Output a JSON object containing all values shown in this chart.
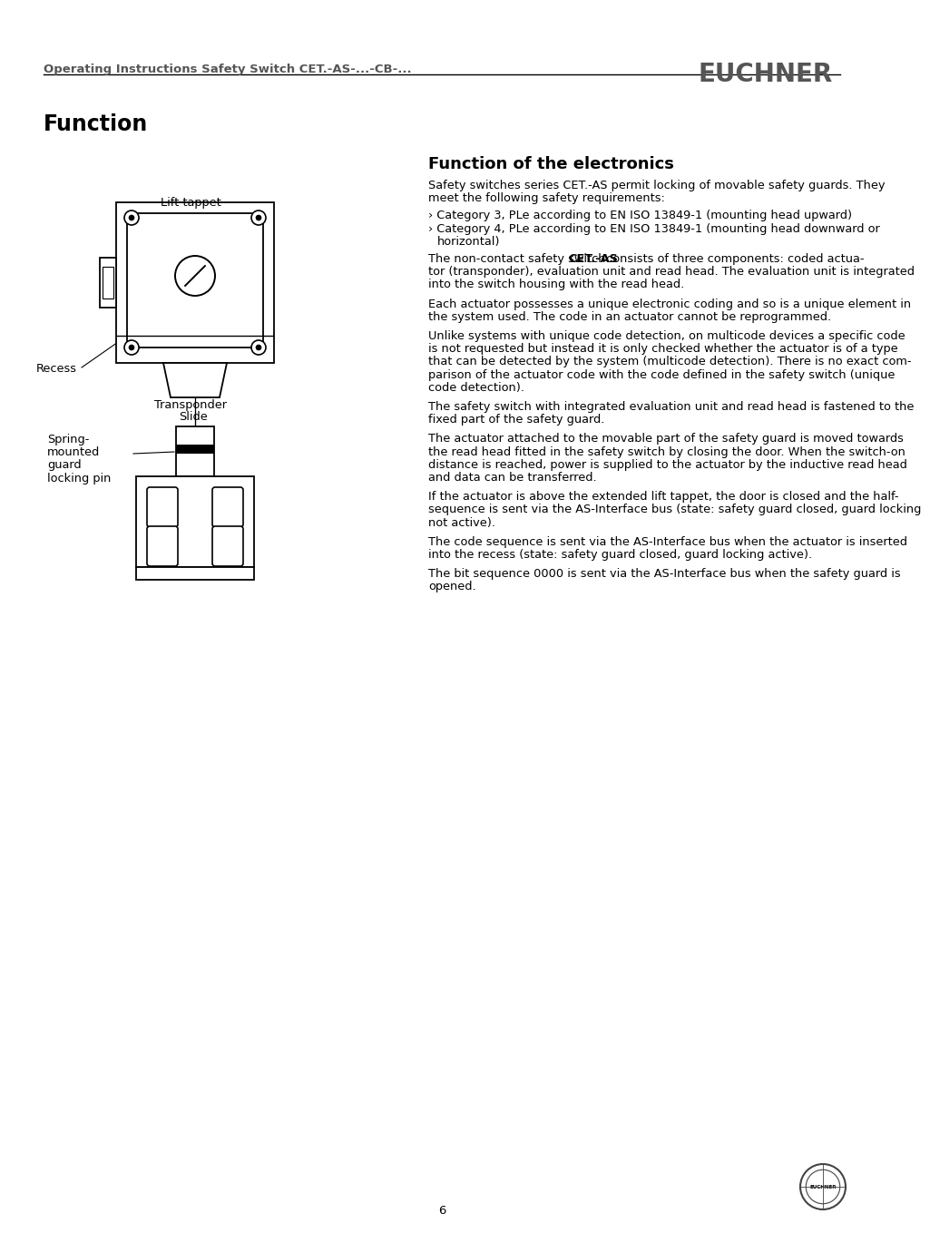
{
  "header_text": "Operating Instructions Safety Switch CET.-AS-...-CB-...",
  "header_brand": "EUCHNER",
  "section_title": "Function",
  "subsection_title": "Function of the electronics",
  "para0": "Safety switches series CET.-AS permit locking of movable safety guards. They meet the following safety requirements:",
  "bullet1": "› Category 3, PLe according to EN ISO 13849-1 (mounting head upward)",
  "bullet2_line1": "› Category 4, PLe according to EN ISO 13849-1 (mounting head downward or",
  "bullet2_line2": "  horizontal)",
  "para1_line1": "The non-contact safety switch ",
  "para1_bold": "CET.-AS",
  "para1_line1b": " consists of three components: coded actua-",
  "para1_line2": "tor (transponder), evaluation unit and read head. The evaluation unit is integrated",
  "para1_line3": "into the switch housing with the read head.",
  "para2_line1": "Each actuator possesses a unique electronic coding and so is a unique element in",
  "para2_line2": "the system used. The code in an actuator cannot be reprogrammed.",
  "para3_line1": "Unlike systems with unique code detection, on multicode devices a specific code",
  "para3_line2": "is not requested but instead it is only checked whether the actuator is of a type",
  "para3_line3": "that can be detected by the system (multicode detection). There is no exact com-",
  "para3_line4": "parison of the actuator code with the code defined in the safety switch (unique",
  "para3_line5": "code detection).",
  "para4_line1": "The safety switch with integrated evaluation unit and read head is fastened to the",
  "para4_line2": "fixed part of the safety guard.",
  "para5_line1": "The actuator attached to the movable part of the safety guard is moved towards",
  "para5_line2": "the read head fitted in the safety switch by closing the door. When the switch-on",
  "para5_line3": "distance is reached, power is supplied to the actuator by the inductive read head",
  "para5_line4": "and data can be transferred.",
  "para6_line1": "If the actuator is above the extended lift tappet, the door is closed and the half-",
  "para6_line2": "sequence is sent via the AS-Interface bus (state: safety guard closed, guard locking",
  "para6_line3": "not active).",
  "para7_line1": "The code sequence is sent via the AS-Interface bus when the actuator is inserted",
  "para7_line2": "into the recess (state: safety guard closed, guard locking active).",
  "para8_line1": "The bit sequence 0000 is sent via the AS-Interface bus when the safety guard is",
  "para8_line2": "opened.",
  "label_lift_tappet": "Lift tappet",
  "label_recess": "Recess",
  "label_slide": "Slide",
  "label_transponder": "Transponder",
  "label_spring1": "Spring-",
  "label_spring2": "mounted",
  "label_spring3": "guard",
  "label_spring4": "locking pin",
  "page_number": "6",
  "bg_color": "#ffffff",
  "text_color": "#000000",
  "gray_color": "#555555"
}
